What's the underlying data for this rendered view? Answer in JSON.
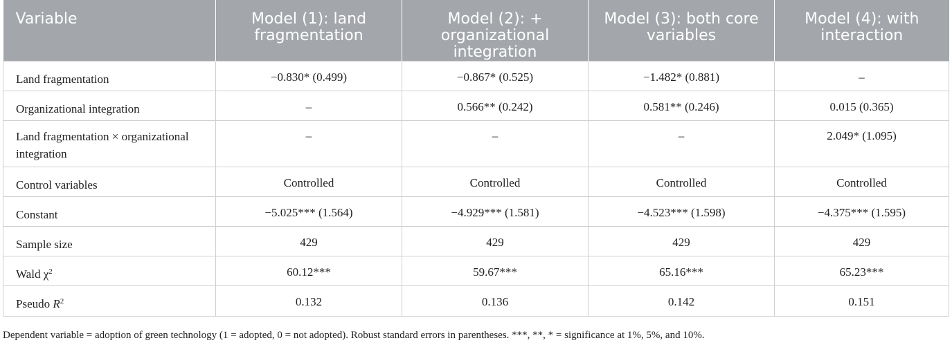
{
  "table": {
    "headers": [
      "Variable",
      "Model (1): land fragmentation",
      "Model (2): + organizational integration",
      "Model (3): both core variables",
      "Model (4): with interaction"
    ],
    "rows": [
      {
        "label": "Land fragmentation",
        "cells": [
          "−0.830* (0.499)",
          "−0.867* (0.525)",
          "−1.482* (0.881)",
          "–"
        ]
      },
      {
        "label": "Organizational integration",
        "cells": [
          "–",
          "0.566** (0.242)",
          "0.581** (0.246)",
          "0.015 (0.365)"
        ]
      },
      {
        "label": "Land fragmentation × organizational integration",
        "cells": [
          "–",
          "–",
          "–",
          "2.049* (1.095)"
        ]
      },
      {
        "label": "Control variables",
        "cells": [
          "Controlled",
          "Controlled",
          "Controlled",
          "Controlled"
        ]
      },
      {
        "label": "Constant",
        "cells": [
          "−5.025*** (1.564)",
          "−4.929*** (1.581)",
          "−4.523*** (1.598)",
          "−4.375*** (1.595)"
        ]
      },
      {
        "label": "Sample size",
        "cells": [
          "429",
          "429",
          "429",
          "429"
        ]
      },
      {
        "label_main": "Wald χ",
        "label_sup": "2",
        "cells": [
          "60.12***",
          "59.67***",
          "65.16***",
          "65.23***"
        ]
      },
      {
        "label_main": "Pseudo ",
        "label_italic": "R",
        "label_sup": "2",
        "cells": [
          "0.132",
          "0.136",
          "0.142",
          "0.151"
        ]
      }
    ]
  },
  "footnote": "Dependent variable = adoption of green technology (1 = adopted, 0 = not adopted). Robust standard errors in parentheses. ***, **, * = significance at 1%, 5%, and 10%."
}
